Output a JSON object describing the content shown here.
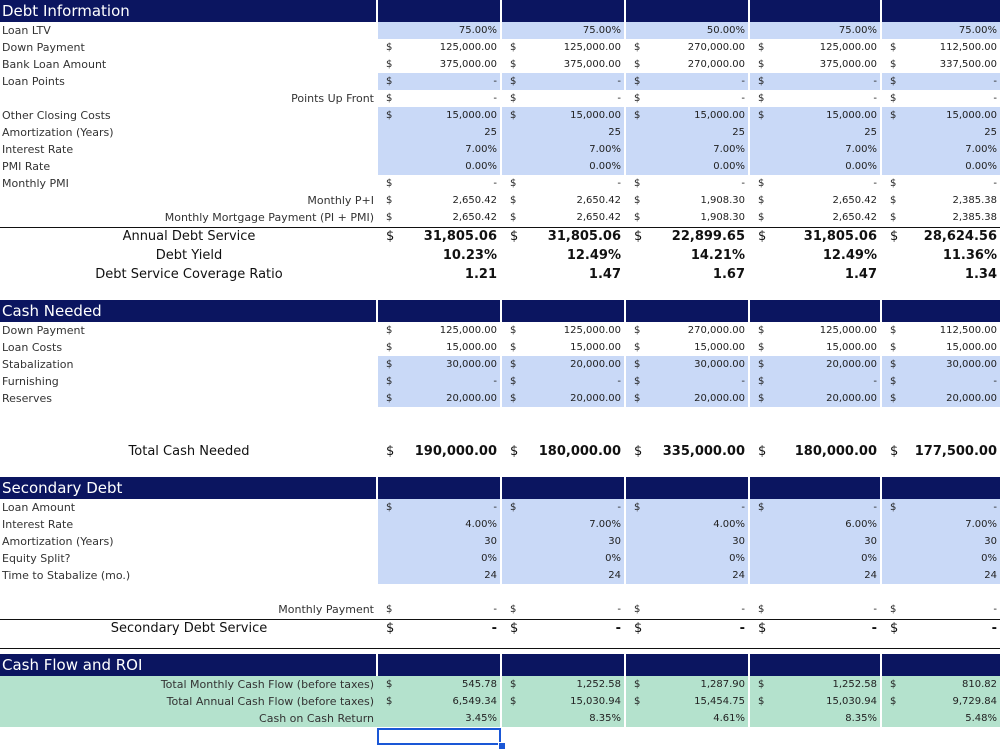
{
  "sections": [
    {
      "title": "Debt Information",
      "rows": [
        {
          "label": "Loan LTV",
          "align": "left",
          "blue": true,
          "dollar": false,
          "values": [
            "75.00%",
            "75.00%",
            "50.00%",
            "75.00%",
            "75.00%"
          ]
        },
        {
          "label": "Down Payment",
          "align": "left",
          "blue": false,
          "dollar": true,
          "values": [
            "125,000.00",
            "125,000.00",
            "270,000.00",
            "125,000.00",
            "112,500.00"
          ]
        },
        {
          "label": "Bank Loan Amount",
          "align": "left",
          "blue": false,
          "dollar": true,
          "values": [
            "375,000.00",
            "375,000.00",
            "270,000.00",
            "375,000.00",
            "337,500.00"
          ]
        },
        {
          "label": "Loan Points",
          "align": "left",
          "blue": true,
          "dollar": true,
          "values": [
            "-",
            "-",
            "-",
            "-",
            "-"
          ]
        },
        {
          "label": "Points Up Front",
          "align": "right",
          "blue": false,
          "dollar": true,
          "values": [
            "-",
            "-",
            "-",
            "-",
            "-"
          ]
        },
        {
          "label": "Other Closing Costs",
          "align": "left",
          "blue": true,
          "dollar": true,
          "values": [
            "15,000.00",
            "15,000.00",
            "15,000.00",
            "15,000.00",
            "15,000.00"
          ]
        },
        {
          "label": "Amortization (Years)",
          "align": "left",
          "blue": true,
          "dollar": false,
          "values": [
            "25",
            "25",
            "25",
            "25",
            "25"
          ]
        },
        {
          "label": "Interest Rate",
          "align": "left",
          "blue": true,
          "dollar": false,
          "values": [
            "7.00%",
            "7.00%",
            "7.00%",
            "7.00%",
            "7.00%"
          ]
        },
        {
          "label": "PMI Rate",
          "align": "left",
          "blue": true,
          "dollar": false,
          "values": [
            "0.00%",
            "0.00%",
            "0.00%",
            "0.00%",
            "0.00%"
          ]
        },
        {
          "label": "Monthly PMI",
          "align": "left",
          "blue": false,
          "dollar": true,
          "values": [
            "-",
            "-",
            "-",
            "-",
            "-"
          ]
        },
        {
          "label": "Monthly P+I",
          "align": "right",
          "blue": false,
          "dollar": true,
          "values": [
            "2,650.42",
            "2,650.42",
            "1,908.30",
            "2,650.42",
            "2,385.38"
          ]
        },
        {
          "label": "Monthly Mortgage Payment (PI + PMI)",
          "align": "right",
          "blue": false,
          "dollar": true,
          "values": [
            "2,650.42",
            "2,650.42",
            "1,908.30",
            "2,650.42",
            "2,385.38"
          ]
        },
        {
          "label": "Annual Debt Service",
          "align": "center",
          "blue": false,
          "dollar": true,
          "bold": true,
          "values": [
            "31,805.06",
            "31,805.06",
            "22,899.65",
            "31,805.06",
            "28,624.56"
          ]
        },
        {
          "label": "Debt Yield",
          "align": "center",
          "blue": false,
          "dollar": false,
          "bold": true,
          "values": [
            "10.23%",
            "12.49%",
            "14.21%",
            "12.49%",
            "11.36%"
          ]
        },
        {
          "label": "Debt Service Coverage Ratio",
          "align": "center",
          "blue": false,
          "dollar": false,
          "bold": true,
          "values": [
            "1.21",
            "1.47",
            "1.67",
            "1.47",
            "1.34"
          ]
        }
      ]
    },
    {
      "title": "Cash Needed",
      "rows": [
        {
          "label": "Down Payment",
          "align": "left",
          "blue": false,
          "dollar": true,
          "values": [
            "125,000.00",
            "125,000.00",
            "270,000.00",
            "125,000.00",
            "112,500.00"
          ]
        },
        {
          "label": "Loan Costs",
          "align": "left",
          "blue": false,
          "dollar": true,
          "values": [
            "15,000.00",
            "15,000.00",
            "15,000.00",
            "15,000.00",
            "15,000.00"
          ]
        },
        {
          "label": "Stabalization",
          "align": "left",
          "blue": true,
          "dollar": true,
          "values": [
            "30,000.00",
            "20,000.00",
            "30,000.00",
            "20,000.00",
            "30,000.00"
          ]
        },
        {
          "label": "Furnishing",
          "align": "left",
          "blue": true,
          "dollar": true,
          "values": [
            "-",
            "-",
            "-",
            "-",
            "-"
          ]
        },
        {
          "label": "Reserves",
          "align": "left",
          "blue": true,
          "dollar": true,
          "values": [
            "20,000.00",
            "20,000.00",
            "20,000.00",
            "20,000.00",
            "20,000.00"
          ]
        },
        {
          "label": "Total Cash Needed",
          "align": "center",
          "blue": false,
          "dollar": true,
          "bold": true,
          "values": [
            "190,000.00",
            "180,000.00",
            "335,000.00",
            "180,000.00",
            "177,500.00"
          ]
        }
      ]
    },
    {
      "title": "Secondary Debt",
      "rows": [
        {
          "label": "Loan Amount",
          "align": "left",
          "blue": true,
          "dollar": true,
          "values": [
            "-",
            "-",
            "-",
            "-",
            "-"
          ]
        },
        {
          "label": "Interest Rate",
          "align": "left",
          "blue": true,
          "dollar": false,
          "values": [
            "4.00%",
            "7.00%",
            "4.00%",
            "6.00%",
            "7.00%"
          ]
        },
        {
          "label": "Amortization (Years)",
          "align": "left",
          "blue": true,
          "dollar": false,
          "values": [
            "30",
            "30",
            "30",
            "30",
            "30"
          ]
        },
        {
          "label": "Equity Split?",
          "align": "left",
          "blue": true,
          "dollar": false,
          "values": [
            "0%",
            "0%",
            "0%",
            "0%",
            "0%"
          ]
        },
        {
          "label": "Time to Stabalize (mo.)",
          "align": "left",
          "blue": true,
          "dollar": false,
          "values": [
            "24",
            "24",
            "24",
            "24",
            "24"
          ]
        },
        {
          "label": "Monthly Payment",
          "align": "right",
          "blue": false,
          "dollar": true,
          "values": [
            "-",
            "-",
            "-",
            "-",
            "-"
          ]
        },
        {
          "label": "Secondary Debt Service",
          "align": "center",
          "blue": false,
          "dollar": true,
          "bold": true,
          "values": [
            "-",
            "-",
            "-",
            "-",
            "-"
          ]
        }
      ]
    },
    {
      "title": "Cash Flow and ROI",
      "rows": [
        {
          "label": "Total Monthly Cash Flow (before taxes)",
          "align": "right",
          "green": true,
          "dollar": true,
          "values": [
            "545.78",
            "1,252.58",
            "1,287.90",
            "1,252.58",
            "810.82"
          ]
        },
        {
          "label": "Total Annual Cash Flow (before taxes)",
          "align": "right",
          "green": true,
          "dollar": true,
          "values": [
            "6,549.34",
            "15,030.94",
            "15,454.75",
            "15,030.94",
            "9,729.84"
          ]
        },
        {
          "label": "Cash on Cash Return",
          "align": "right",
          "green": true,
          "dollar": false,
          "values": [
            "3.45%",
            "8.35%",
            "4.61%",
            "8.35%",
            "5.48%"
          ]
        }
      ]
    }
  ],
  "dollar_sign": "$",
  "colors": {
    "header": "#0b1560",
    "input_blue": "#c9d9f7",
    "result_green": "#b4e2cd",
    "selection": "#1a57d6"
  }
}
